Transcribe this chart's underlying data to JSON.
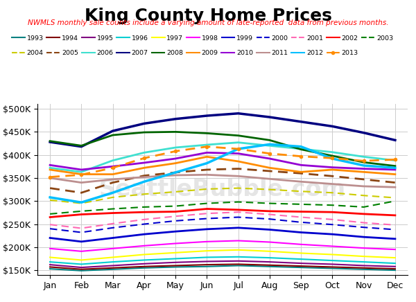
{
  "title": "King County Home Prices",
  "subtitle": "NWMLS monthly sale counts include a varying amount of late-reported  data from previous months.",
  "subtitle_color": "#ff0000",
  "months": [
    "Jan",
    "Feb",
    "Mar",
    "Apr",
    "May",
    "Jun",
    "Jul",
    "Aug",
    "Sep",
    "Oct",
    "Nov",
    "Dec"
  ],
  "series": [
    {
      "label": "1993",
      "color": "#008080",
      "linestyle": "solid",
      "linewidth": 1.5,
      "marker": null,
      "values": [
        153000,
        149000,
        152000,
        155000,
        157000,
        158000,
        160000,
        158000,
        156000,
        154000,
        152000,
        150000
      ]
    },
    {
      "label": "1994",
      "color": "#800000",
      "linestyle": "solid",
      "linewidth": 1.5,
      "marker": null,
      "values": [
        157000,
        152000,
        155000,
        158000,
        160000,
        162000,
        163000,
        161000,
        159000,
        157000,
        155000,
        153000
      ]
    },
    {
      "label": "1995",
      "color": "#800080",
      "linestyle": "solid",
      "linewidth": 1.5,
      "marker": null,
      "values": [
        162000,
        156000,
        160000,
        164000,
        167000,
        169000,
        170000,
        168000,
        165000,
        163000,
        160000,
        158000
      ]
    },
    {
      "label": "1996",
      "color": "#00ced1",
      "linestyle": "solid",
      "linewidth": 1.5,
      "marker": null,
      "values": [
        168000,
        163000,
        168000,
        172000,
        175000,
        178000,
        179000,
        177000,
        174000,
        171000,
        168000,
        165000
      ]
    },
    {
      "label": "1997",
      "color": "#ffff00",
      "linestyle": "solid",
      "linewidth": 1.5,
      "marker": null,
      "values": [
        178000,
        172000,
        178000,
        184000,
        188000,
        192000,
        194000,
        191000,
        187000,
        184000,
        180000,
        177000
      ]
    },
    {
      "label": "1998",
      "color": "#ff00ff",
      "linestyle": "solid",
      "linewidth": 1.5,
      "marker": null,
      "values": [
        197000,
        191000,
        197000,
        203000,
        208000,
        212000,
        214000,
        211000,
        206000,
        202000,
        198000,
        195000
      ]
    },
    {
      "label": "1999",
      "color": "#0000cd",
      "linestyle": "solid",
      "linewidth": 2.0,
      "marker": null,
      "values": [
        220000,
        212000,
        220000,
        228000,
        234000,
        239000,
        242000,
        238000,
        232000,
        228000,
        222000,
        218000
      ]
    },
    {
      "label": "2000",
      "color": "#0000cd",
      "linestyle": "dashed",
      "linewidth": 1.5,
      "marker": null,
      "values": [
        240000,
        232000,
        242000,
        250000,
        257000,
        262000,
        265000,
        261000,
        254000,
        249000,
        243000,
        238000
      ]
    },
    {
      "label": "2001",
      "color": "#ff69b4",
      "linestyle": "dashed",
      "linewidth": 1.5,
      "marker": null,
      "values": [
        249000,
        241000,
        251000,
        260000,
        267000,
        273000,
        276000,
        271000,
        265000,
        260000,
        253000,
        248000
      ]
    },
    {
      "label": "2002",
      "color": "#ff0000",
      "linestyle": "solid",
      "linewidth": 2.0,
      "marker": null,
      "values": [
        265000,
        271000,
        274000,
        276000,
        277000,
        283000,
        281000,
        278000,
        277000,
        276000,
        272000,
        269000
      ]
    },
    {
      "label": "2003",
      "color": "#008000",
      "linestyle": "dashed",
      "linewidth": 1.5,
      "marker": null,
      "values": [
        272000,
        278000,
        283000,
        287000,
        289000,
        295000,
        298000,
        295000,
        293000,
        291000,
        287000,
        300000
      ]
    },
    {
      "label": "2004",
      "color": "#cccc00",
      "linestyle": "dashed",
      "linewidth": 1.5,
      "marker": null,
      "values": [
        302000,
        295000,
        308000,
        315000,
        320000,
        326000,
        328000,
        325000,
        321000,
        318000,
        312000,
        307000
      ]
    },
    {
      "label": "2005",
      "color": "#8B4513",
      "linestyle": "dashed",
      "linewidth": 2.0,
      "marker": null,
      "values": [
        328000,
        318000,
        340000,
        355000,
        362000,
        368000,
        370000,
        365000,
        360000,
        354000,
        347000,
        340000
      ]
    },
    {
      "label": "2006",
      "color": "#40e0d0",
      "linestyle": "solid",
      "linewidth": 2.0,
      "marker": null,
      "values": [
        372000,
        363000,
        388000,
        405000,
        416000,
        422000,
        427000,
        420000,
        413000,
        406000,
        396000,
        388000
      ]
    },
    {
      "label": "2007",
      "color": "#000080",
      "linestyle": "solid",
      "linewidth": 2.5,
      "marker": null,
      "values": [
        428000,
        418000,
        452000,
        468000,
        478000,
        485000,
        490000,
        482000,
        472000,
        462000,
        448000,
        432000
      ]
    },
    {
      "label": "2008",
      "color": "#006400",
      "linestyle": "solid",
      "linewidth": 2.0,
      "marker": null,
      "values": [
        430000,
        420000,
        443000,
        449000,
        450000,
        447000,
        442000,
        432000,
        412000,
        398000,
        384000,
        376000
      ]
    },
    {
      "label": "2009",
      "color": "#ff8c00",
      "linestyle": "solid",
      "linewidth": 2.0,
      "marker": null,
      "values": [
        368000,
        358000,
        358000,
        372000,
        382000,
        396000,
        386000,
        372000,
        363000,
        368000,
        363000,
        358000
      ]
    },
    {
      "label": "2010",
      "color": "#9400d3",
      "linestyle": "solid",
      "linewidth": 2.0,
      "marker": null,
      "values": [
        378000,
        368000,
        375000,
        383000,
        392000,
        405000,
        403000,
        392000,
        378000,
        373000,
        370000,
        368000
      ]
    },
    {
      "label": "2011",
      "color": "#bc8f8f",
      "linestyle": "solid",
      "linewidth": 2.0,
      "marker": null,
      "values": [
        350000,
        340000,
        347000,
        352000,
        356000,
        357000,
        354000,
        348000,
        342000,
        337000,
        332000,
        330000
      ]
    },
    {
      "label": "2012",
      "color": "#00bfff",
      "linestyle": "solid",
      "linewidth": 2.5,
      "marker": null,
      "values": [
        308000,
        297000,
        318000,
        342000,
        362000,
        382000,
        413000,
        423000,
        418000,
        392000,
        377000,
        372000
      ]
    },
    {
      "label": "2013",
      "color": "#ff8c00",
      "linestyle": "dashed",
      "linewidth": 2.0,
      "marker": "o",
      "values": [
        352000,
        357000,
        372000,
        393000,
        408000,
        418000,
        413000,
        403000,
        397000,
        393000,
        387000,
        390000
      ]
    }
  ],
  "ylim": [
    140000,
    510000
  ],
  "yticks": [
    150000,
    200000,
    250000,
    300000,
    350000,
    400000,
    450000,
    500000
  ],
  "ytick_labels": [
    "$150K",
    "$200K",
    "$250K",
    "$300K",
    "$350K",
    "$400K",
    "$450K",
    "$500K"
  ],
  "watermark": "SeattleBubble.com",
  "bg_color": "#ffffff",
  "grid_color": "#cccccc",
  "title_fontsize": 18,
  "subtitle_fontsize": 7.5
}
